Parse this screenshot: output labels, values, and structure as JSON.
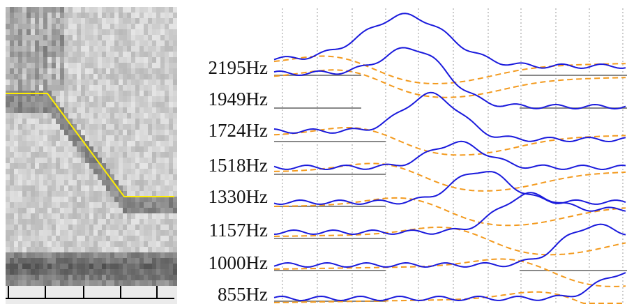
{
  "labels": [
    "2195Hz",
    "1949Hz",
    "1724Hz",
    "1518Hz",
    "1330Hz",
    "1157Hz",
    "1000Hz",
    "855Hz"
  ]
}
